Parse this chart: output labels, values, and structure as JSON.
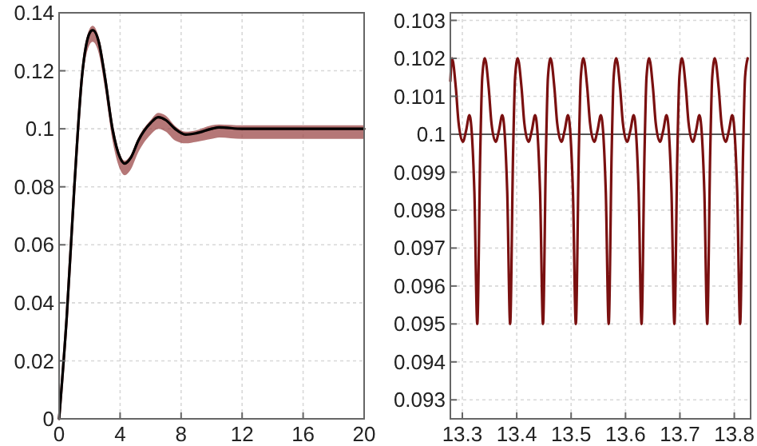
{
  "chart_data": [
    {
      "type": "line",
      "xlim": [
        0,
        20
      ],
      "ylim": [
        0,
        0.14
      ],
      "xticks": [
        0,
        4,
        8,
        12,
        16,
        20
      ],
      "yticks": [
        0,
        0.02,
        0.04,
        0.06,
        0.08,
        0.1,
        0.12,
        0.14
      ],
      "grid": true,
      "series": [
        {
          "color": "#9c4a4a",
          "x": [
            0,
            0.5,
            1,
            1.5,
            2,
            2.2,
            2.6,
            3,
            3.5,
            4,
            4.3,
            4.7,
            5.2,
            6,
            6.5,
            7,
            7.6,
            8.3,
            9,
            10,
            10.5,
            12,
            14,
            16,
            18,
            20
          ],
          "values": [
            0,
            0.035,
            0.08,
            0.118,
            0.133,
            0.134,
            0.13,
            0.118,
            0.1,
            0.09,
            0.088,
            0.09,
            0.096,
            0.102,
            0.104,
            0.103,
            0.1,
            0.098,
            0.0985,
            0.1,
            0.1005,
            0.1,
            0.1,
            0.1,
            0.1,
            0.1
          ],
          "lower": [
            0,
            0.034,
            0.078,
            0.115,
            0.129,
            0.13,
            0.126,
            0.114,
            0.096,
            0.086,
            0.084,
            0.086,
            0.092,
            0.098,
            0.1,
            0.099,
            0.096,
            0.095,
            0.0955,
            0.0965,
            0.097,
            0.0965,
            0.0965,
            0.0965,
            0.0965,
            0.0965
          ],
          "upper": [
            0,
            0.036,
            0.081,
            0.119,
            0.1345,
            0.1355,
            0.1315,
            0.119,
            0.101,
            0.091,
            0.089,
            0.091,
            0.097,
            0.103,
            0.1055,
            0.1045,
            0.101,
            0.099,
            0.0995,
            0.1012,
            0.1015,
            0.1012,
            0.1012,
            0.1012,
            0.1012,
            0.1012
          ]
        },
        {
          "color": "#000000",
          "x": [
            0,
            0.5,
            1,
            1.5,
            2,
            2.2,
            2.6,
            3,
            3.5,
            4,
            4.3,
            4.7,
            5.2,
            6,
            6.5,
            7,
            7.6,
            8.3,
            9,
            10,
            10.5,
            12,
            14,
            16,
            18,
            20
          ],
          "values": [
            0,
            0.035,
            0.08,
            0.118,
            0.133,
            0.134,
            0.13,
            0.118,
            0.1,
            0.09,
            0.088,
            0.09,
            0.096,
            0.102,
            0.104,
            0.103,
            0.1,
            0.098,
            0.0985,
            0.1,
            0.1005,
            0.1,
            0.1,
            0.1,
            0.1,
            0.1
          ]
        }
      ]
    },
    {
      "type": "line",
      "xlim": [
        13.278,
        13.83
      ],
      "ylim": [
        0.0925,
        0.1032
      ],
      "xticks": [
        13.3,
        13.4,
        13.5,
        13.6,
        13.7,
        13.8
      ],
      "yticks": [
        0.093,
        0.094,
        0.095,
        0.096,
        0.097,
        0.098,
        0.099,
        0.1,
        0.101,
        0.102,
        0.103
      ],
      "grid": true,
      "ref_lines": [
        {
          "axis": "y",
          "value": 0.1,
          "color": "#555555"
        }
      ],
      "series": [
        {
          "color": "#7a1010",
          "x": [
            13.278,
            13.281,
            13.2882,
            13.2931,
            13.3009,
            13.307,
            13.313,
            13.3221,
            13.3275,
            13.3329,
            13.3366,
            13.3414,
            13.3486,
            13.3535,
            13.3613,
            13.3674,
            13.3734,
            13.3825,
            13.3879,
            13.3933,
            13.397,
            13.4018,
            13.409,
            13.4139,
            13.4217,
            13.4278,
            13.4338,
            13.4429,
            13.4483,
            13.4537,
            13.4574,
            13.4622,
            13.4694,
            13.4743,
            13.4821,
            13.4882,
            13.4942,
            13.5033,
            13.5087,
            13.5141,
            13.5178,
            13.5226,
            13.5298,
            13.5347,
            13.5425,
            13.5486,
            13.5546,
            13.5637,
            13.5691,
            13.5745,
            13.5782,
            13.583,
            13.5902,
            13.5951,
            13.6029,
            13.609,
            13.615,
            13.6241,
            13.6295,
            13.6349,
            13.6386,
            13.6434,
            13.6506,
            13.6555,
            13.6633,
            13.6694,
            13.6754,
            13.6845,
            13.6899,
            13.6953,
            13.699,
            13.7038,
            13.711,
            13.7159,
            13.7237,
            13.7298,
            13.7358,
            13.7449,
            13.7503,
            13.7557,
            13.7594,
            13.7642,
            13.7714,
            13.7763,
            13.7841,
            13.7902,
            13.7962,
            13.8053,
            13.8107,
            13.8161,
            13.8198,
            13.8246
          ],
          "values": [
            0.1014,
            0.102,
            0.1012,
            0.1003,
            0.0998,
            0.1001,
            0.1005,
            0.0985,
            0.095,
            0.0995,
            0.1015,
            0.102,
            0.1012,
            0.1003,
            0.0998,
            0.1001,
            0.1005,
            0.0985,
            0.095,
            0.0995,
            0.1015,
            0.102,
            0.1012,
            0.1003,
            0.0998,
            0.1001,
            0.1005,
            0.0985,
            0.095,
            0.0995,
            0.1015,
            0.102,
            0.1012,
            0.1003,
            0.0998,
            0.1001,
            0.1005,
            0.0985,
            0.095,
            0.0995,
            0.1015,
            0.102,
            0.1012,
            0.1003,
            0.0998,
            0.1001,
            0.1005,
            0.0985,
            0.095,
            0.0995,
            0.1015,
            0.102,
            0.1012,
            0.1003,
            0.0998,
            0.1001,
            0.1005,
            0.0985,
            0.095,
            0.0995,
            0.1015,
            0.102,
            0.1012,
            0.1003,
            0.0998,
            0.1001,
            0.1005,
            0.0985,
            0.095,
            0.0995,
            0.1015,
            0.102,
            0.1012,
            0.1003,
            0.0998,
            0.1001,
            0.1005,
            0.0985,
            0.095,
            0.0995,
            0.1015,
            0.102,
            0.1012,
            0.1003,
            0.0998,
            0.1001,
            0.1005,
            0.0985,
            0.095,
            0.0995,
            0.1015,
            0.102
          ]
        }
      ]
    }
  ]
}
